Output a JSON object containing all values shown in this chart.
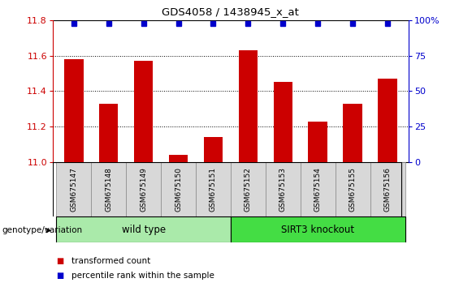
{
  "title": "GDS4058 / 1438945_x_at",
  "samples": [
    "GSM675147",
    "GSM675148",
    "GSM675149",
    "GSM675150",
    "GSM675151",
    "GSM675152",
    "GSM675153",
    "GSM675154",
    "GSM675155",
    "GSM675156"
  ],
  "red_values": [
    11.58,
    11.33,
    11.57,
    11.04,
    11.14,
    11.63,
    11.45,
    11.23,
    11.33,
    11.47
  ],
  "blue_values": [
    100,
    100,
    100,
    100,
    100,
    100,
    100,
    100,
    100,
    100
  ],
  "ylim_left": [
    11.0,
    11.8
  ],
  "ylim_right": [
    0,
    100
  ],
  "yticks_left": [
    11.0,
    11.2,
    11.4,
    11.6,
    11.8
  ],
  "yticks_right": [
    0,
    25,
    50,
    75,
    100
  ],
  "groups": [
    {
      "label": "wild type",
      "start": 0,
      "end": 5,
      "color": "#aaeaaa"
    },
    {
      "label": "SIRT3 knockout",
      "start": 5,
      "end": 10,
      "color": "#44dd44"
    }
  ],
  "bar_color": "#cc0000",
  "dot_color": "#0000cc",
  "bar_width": 0.55,
  "legend_items": [
    {
      "color": "#cc0000",
      "label": "transformed count"
    },
    {
      "color": "#0000cc",
      "label": "percentile rank within the sample"
    }
  ],
  "group_label": "genotype/variation",
  "xlabel_area_color": "#d8d8d8",
  "baseline": 11.0
}
